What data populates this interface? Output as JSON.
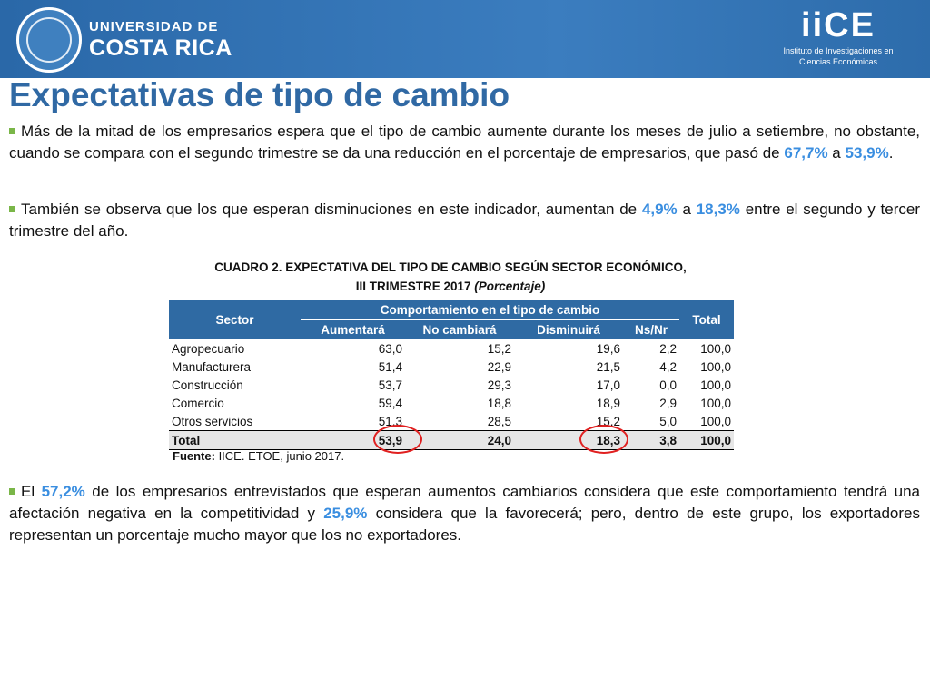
{
  "header": {
    "ucr_line1": "UNIVERSIDAD DE",
    "ucr_line2": "COSTA RICA",
    "iice_mark": "iiCE",
    "iice_sub1": "Instituto de Investigaciones en",
    "iice_sub2": "Ciencias Económicas",
    "bg_color": "#2f6fae"
  },
  "title": "Expectativas de tipo de cambio",
  "bullets": [
    {
      "t1": "Más de la mitad de los empresarios espera que el tipo de cambio aumente durante los meses de julio a setiembre, no obstante, cuando se compara con el segundo trimestre se da una reducción en el porcentaje de empresarios, que pasó de ",
      "h1": "67,7%",
      "t2": " a ",
      "h2": "53,9%",
      "t3": "."
    },
    {
      "t1": "También se observa que los que esperan disminuciones en este indicador, aumentan de ",
      "h1": "4,9%",
      "t2": " a ",
      "h2": "18,3%",
      "t3": " entre el segundo y tercer trimestre del año."
    },
    {
      "t1": "El ",
      "h1": "57,2%",
      "t2": " de los empresarios entrevistados que esperan aumentos cambiarios considera que este comportamiento tendrá una afectación negativa en la competitividad y ",
      "h2": "25,9%",
      "t3": " considera que la favorecerá; pero, dentro de este grupo, los exportadores representan un porcentaje mucho mayor que los no exportadores."
    }
  ],
  "table": {
    "caption_line1": "CUADRO 2. EXPECTATIVA DEL TIPO DE CAMBIO SEGÚN SECTOR ECONÓMICO,",
    "caption_line2": "III TRIMESTRE 2017 ",
    "caption_italic": "(Porcentaje)",
    "header_sector": "Sector",
    "header_group": "Comportamiento en el tipo de cambio",
    "header_total": "Total",
    "sub_headers": [
      "Aumentará",
      "No cambiará",
      "Disminuirá",
      "Ns/Nr"
    ],
    "rows": [
      [
        "Agropecuario",
        "63,0",
        "15,2",
        "19,6",
        "2,2",
        "100,0"
      ],
      [
        "Manufacturera",
        "51,4",
        "22,9",
        "21,5",
        "4,2",
        "100,0"
      ],
      [
        "Construcción",
        "53,7",
        "29,3",
        "17,0",
        "0,0",
        "100,0"
      ],
      [
        "Comercio",
        "59,4",
        "18,8",
        "18,9",
        "2,9",
        "100,0"
      ],
      [
        "Otros servicios",
        "51,3",
        "28,5",
        "15,2",
        "5,0",
        "100,0"
      ]
    ],
    "total_row": [
      "Total",
      "53,9",
      "24,0",
      "18,3",
      "3,8",
      "100,0"
    ],
    "source_label": "Fuente:",
    "source_text": " IICE. ETOE, junio 2017.",
    "header_color": "#2f6aa3",
    "highlight_color": "#e02020"
  }
}
